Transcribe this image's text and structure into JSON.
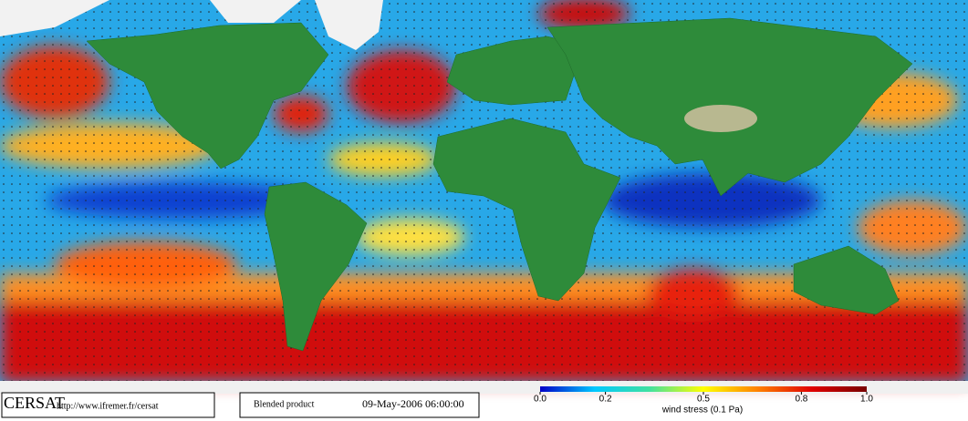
{
  "header": {
    "logo": "CERSAT",
    "url": "http://www.ifremer.fr/cersat",
    "product": "Blended product",
    "date": "09-May-2006 06:00:00"
  },
  "colorbar": {
    "label": "wind stress (0.1 Pa)",
    "lim": [
      0,
      1
    ],
    "ticks": [
      {
        "value": 0,
        "label": "0.0"
      },
      0.2,
      0.5,
      0.8,
      {
        "value": 1,
        "label": "1.0"
      }
    ],
    "colors": [
      "#0000c8",
      "#00c8ff",
      "#40e0a0",
      "#ffff00",
      "#ff8000",
      "#e00000",
      "#780000"
    ]
  }
}
